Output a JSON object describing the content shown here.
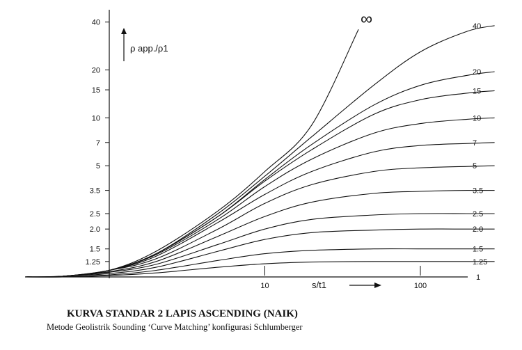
{
  "chart_data": {
    "type": "line",
    "title": "KURVA STANDAR 2 LAPIS ASCENDING (NAIK)",
    "subtitle": "Metode Geolistrik Sounding ‘Curve Matching’ konfigurasi Schlumberger",
    "xlabel": "s/t1",
    "ylabel": "ρ app./ρ1",
    "x_scale": "log",
    "y_scale": "log",
    "xlim": [
      0.15,
      300
    ],
    "ylim": [
      1,
      45
    ],
    "x_ticks": [
      "10",
      "100"
    ],
    "y_ticks": [
      "40",
      "20",
      "15",
      "10",
      "7",
      "5",
      "3.5",
      "2.5",
      "2.0",
      "1.5",
      "1.25",
      "1"
    ],
    "grid": false,
    "infinity_label": "∞",
    "series": [
      {
        "name": "40",
        "asymptote": 40,
        "x": [
          0.15,
          0.5,
          1,
          2,
          5,
          10,
          20,
          50,
          100,
          200,
          300
        ],
        "y": [
          1.0,
          1.01,
          1.1,
          1.4,
          2.5,
          4.3,
          7.6,
          16,
          26,
          35,
          38
        ]
      },
      {
        "name": "20",
        "asymptote": 20,
        "x": [
          0.15,
          0.5,
          1,
          2,
          5,
          10,
          20,
          50,
          100,
          200,
          300
        ],
        "y": [
          1.0,
          1.01,
          1.1,
          1.4,
          2.4,
          4.1,
          6.8,
          12,
          16,
          18.5,
          19.5
        ]
      },
      {
        "name": "15",
        "asymptote": 15,
        "x": [
          0.15,
          0.5,
          1,
          2,
          5,
          10,
          20,
          50,
          100,
          200,
          300
        ],
        "y": [
          1.0,
          1.01,
          1.1,
          1.4,
          2.4,
          4.0,
          6.3,
          10.5,
          13,
          14.3,
          14.8
        ]
      },
      {
        "name": "10",
        "asymptote": 10,
        "x": [
          0.15,
          0.5,
          1,
          2,
          5,
          10,
          20,
          50,
          100,
          200,
          300
        ],
        "y": [
          1.0,
          1.01,
          1.1,
          1.38,
          2.3,
          3.7,
          5.5,
          8.0,
          9.2,
          9.8,
          10
        ]
      },
      {
        "name": "7",
        "asymptote": 7,
        "x": [
          0.15,
          0.5,
          1,
          2,
          5,
          10,
          20,
          50,
          100,
          200,
          300
        ],
        "y": [
          1.0,
          1.01,
          1.1,
          1.35,
          2.2,
          3.3,
          4.6,
          6.1,
          6.7,
          6.9,
          7
        ]
      },
      {
        "name": "5",
        "asymptote": 5,
        "x": [
          0.15,
          0.5,
          1,
          2,
          5,
          10,
          20,
          50,
          100,
          200,
          300
        ],
        "y": [
          1.0,
          1.01,
          1.1,
          1.3,
          2.0,
          2.9,
          3.8,
          4.6,
          4.85,
          4.95,
          5
        ]
      },
      {
        "name": "3.5",
        "asymptote": 3.5,
        "x": [
          0.15,
          0.5,
          1,
          2,
          5,
          10,
          20,
          50,
          100,
          200,
          300
        ],
        "y": [
          1.0,
          1.01,
          1.08,
          1.25,
          1.8,
          2.4,
          2.95,
          3.35,
          3.45,
          3.5,
          3.5
        ]
      },
      {
        "name": "2.5",
        "asymptote": 2.5,
        "x": [
          0.15,
          0.5,
          1,
          2,
          5,
          10,
          20,
          50,
          100,
          200,
          300
        ],
        "y": [
          1.0,
          1.01,
          1.07,
          1.2,
          1.6,
          2.0,
          2.3,
          2.45,
          2.5,
          2.5,
          2.5
        ]
      },
      {
        "name": "2.0",
        "asymptote": 2.0,
        "x": [
          0.15,
          0.5,
          1,
          2,
          5,
          10,
          20,
          50,
          100,
          200,
          300
        ],
        "y": [
          1.0,
          1.01,
          1.05,
          1.15,
          1.45,
          1.72,
          1.9,
          1.97,
          2.0,
          2.0,
          2.0
        ]
      },
      {
        "name": "1.5",
        "asymptote": 1.5,
        "x": [
          0.15,
          0.5,
          1,
          2,
          5,
          10,
          20,
          50,
          100,
          200,
          300
        ],
        "y": [
          1.0,
          1.0,
          1.03,
          1.1,
          1.27,
          1.4,
          1.47,
          1.5,
          1.5,
          1.5,
          1.5
        ]
      },
      {
        "name": "1.25",
        "asymptote": 1.25,
        "x": [
          0.15,
          0.5,
          1,
          2,
          5,
          10,
          20,
          50,
          100,
          200,
          300
        ],
        "y": [
          1.0,
          1.0,
          1.02,
          1.06,
          1.15,
          1.21,
          1.24,
          1.25,
          1.25,
          1.25,
          1.25
        ]
      },
      {
        "name": "∞",
        "asymptote": null,
        "x": [
          0.15,
          0.5,
          1,
          2,
          5,
          10,
          20,
          40
        ],
        "y": [
          1.0,
          1.01,
          1.1,
          1.45,
          2.6,
          4.6,
          9,
          36
        ]
      }
    ],
    "baseline_label": "1"
  }
}
